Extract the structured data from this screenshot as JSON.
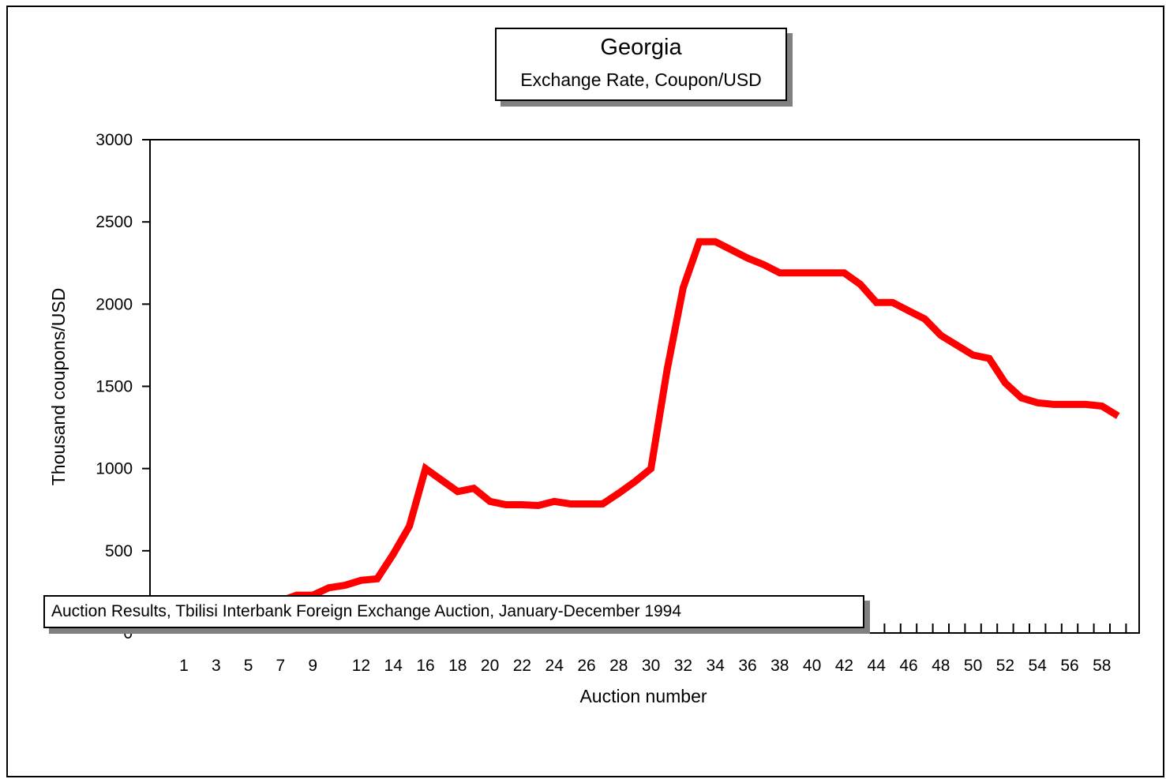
{
  "chart_data": {
    "type": "line",
    "title": "Georgia",
    "subtitle": "Exchange Rate, Coupon/USD",
    "xlabel": "Auction number",
    "ylabel": "Thousand coupons/USD",
    "footnote": "Auction Results, Tbilisi Interbank Foreign Exchange Auction, January-December 1994",
    "ylim": [
      0,
      3000
    ],
    "yticks": [
      0,
      500,
      1000,
      1500,
      2000,
      2500,
      3000
    ],
    "xticks": [
      1,
      3,
      5,
      7,
      9,
      12,
      14,
      16,
      18,
      20,
      22,
      24,
      26,
      28,
      30,
      32,
      34,
      36,
      38,
      40,
      42,
      44,
      46,
      48,
      50,
      52,
      54,
      56,
      58
    ],
    "x": [
      1,
      2,
      3,
      4,
      5,
      6,
      7,
      8,
      9,
      10,
      11,
      12,
      13,
      14,
      15,
      16,
      17,
      18,
      19,
      20,
      21,
      22,
      23,
      24,
      25,
      26,
      27,
      28,
      29,
      30,
      31,
      32,
      33,
      34,
      35,
      36,
      37,
      38,
      39,
      40,
      41,
      42,
      43,
      44,
      45,
      46,
      47,
      48,
      49,
      50,
      51,
      52,
      53,
      54,
      55,
      56,
      57,
      58,
      59
    ],
    "series": [
      {
        "color": "#ff0000",
        "values": [
          120,
          120,
          180,
          185,
          185,
          185,
          195,
          230,
          230,
          275,
          290,
          320,
          330,
          480,
          650,
          1000,
          930,
          860,
          880,
          800,
          780,
          780,
          775,
          800,
          785,
          785,
          785,
          850,
          920,
          1000,
          1600,
          2100,
          2380,
          2380,
          2330,
          2280,
          2240,
          2190,
          2190,
          2190,
          2190,
          2190,
          2120,
          2010,
          2010,
          1960,
          1910,
          1810,
          1750,
          1690,
          1670,
          1520,
          1430,
          1400,
          1390,
          1390,
          1390,
          1380,
          1320
        ]
      }
    ],
    "grid": false,
    "legend": "none"
  }
}
